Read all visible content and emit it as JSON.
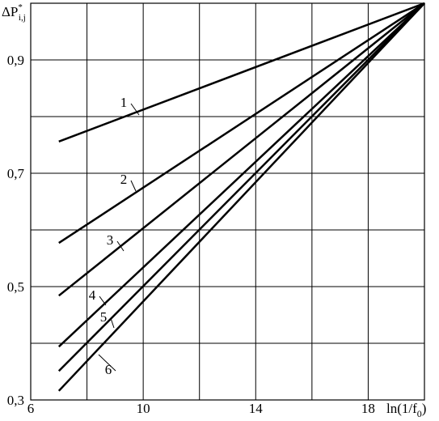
{
  "chart_data": {
    "type": "line",
    "y_label": [
      "ΔP",
      "*",
      "i,j"
    ],
    "x_label": [
      "ln(1/f",
      "0",
      ")"
    ],
    "x": [
      7,
      20
    ],
    "series": [
      {
        "name": "1",
        "color": "#000000",
        "values": [
          0.756,
          1.0
        ]
      },
      {
        "name": "2",
        "color": "#000000",
        "values": [
          0.577,
          1.0
        ]
      },
      {
        "name": "3",
        "color": "#000000",
        "values": [
          0.484,
          1.0
        ]
      },
      {
        "name": "4",
        "color": "#000000",
        "values": [
          0.394,
          1.0
        ]
      },
      {
        "name": "5",
        "color": "#000000",
        "values": [
          0.351,
          1.0
        ]
      },
      {
        "name": "6",
        "color": "#000000",
        "values": [
          0.316,
          1.0
        ]
      }
    ],
    "xlim": [
      6,
      20
    ],
    "ylim": [
      0.3,
      1.0
    ],
    "xticks": [
      6,
      10,
      14,
      18
    ],
    "yticks": [
      {
        "value": 0.3,
        "label": "0,3"
      },
      {
        "value": 0.5,
        "label": "0,5"
      },
      {
        "value": 0.7,
        "label": "0,7"
      },
      {
        "value": 0.9,
        "label": "0,9"
      }
    ],
    "xgrid": [
      8,
      10,
      12,
      14,
      16,
      18
    ],
    "ygrid": [
      0.4,
      0.5,
      0.6,
      0.7,
      0.8,
      0.9
    ],
    "grid": true
  }
}
